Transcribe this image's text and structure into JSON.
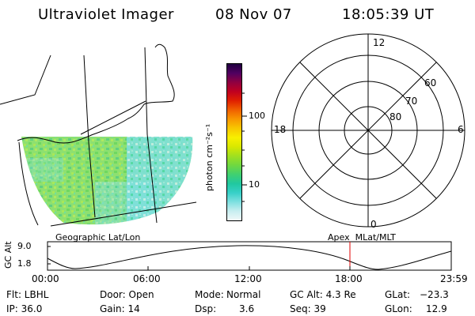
{
  "header": {
    "instrument": "Ultraviolet Imager",
    "date": "08 Nov 07",
    "time": "18:05:39 UT"
  },
  "colorbar": {
    "unit_label": "photon cm⁻²s⁻¹",
    "ticks": [
      "100",
      "10"
    ],
    "colors": [
      "#f0f8f8",
      "#c8eef0",
      "#7ee0e0",
      "#38d0c8",
      "#20c8a0",
      "#40d070",
      "#70d840",
      "#a0e020",
      "#d8e800",
      "#f8f000",
      "#f8c800",
      "#f89800",
      "#f06000",
      "#e02000",
      "#c00020",
      "#900040",
      "#500060",
      "#200040"
    ]
  },
  "left_panel": {
    "caption": "Geographic Lat/Lon"
  },
  "polar_panel": {
    "caption": "Apex  MLat/MLT",
    "mlt_labels": {
      "top": "12",
      "left": "18",
      "right": "6",
      "bottom": "0"
    },
    "lat_labels": [
      "60",
      "70",
      "80"
    ]
  },
  "timeline": {
    "ylabel": "GC Alt",
    "yticks": [
      "9.0",
      "1.8"
    ],
    "xticks": [
      "00:00",
      "06:00",
      "12:00",
      "18:00",
      "23:59"
    ],
    "marker_color": "#e00000"
  },
  "footer": {
    "row1": {
      "filter": "Flt: LBHL",
      "door": "Door: Open",
      "mode_label": "Mode:",
      "mode_value": "Normal",
      "gc_alt": "GC Alt: 4.3 Re",
      "glat_label": "GLat:",
      "glat_value": "−23.3"
    },
    "row2": {
      "ip": "IP: 36.0",
      "gain": "Gain: 14",
      "dsp_label": "Dsp:",
      "dsp_value": "3.6",
      "seq": "Seq: 39",
      "glon_label": "GLon:",
      "glon_value": "12.9"
    }
  }
}
